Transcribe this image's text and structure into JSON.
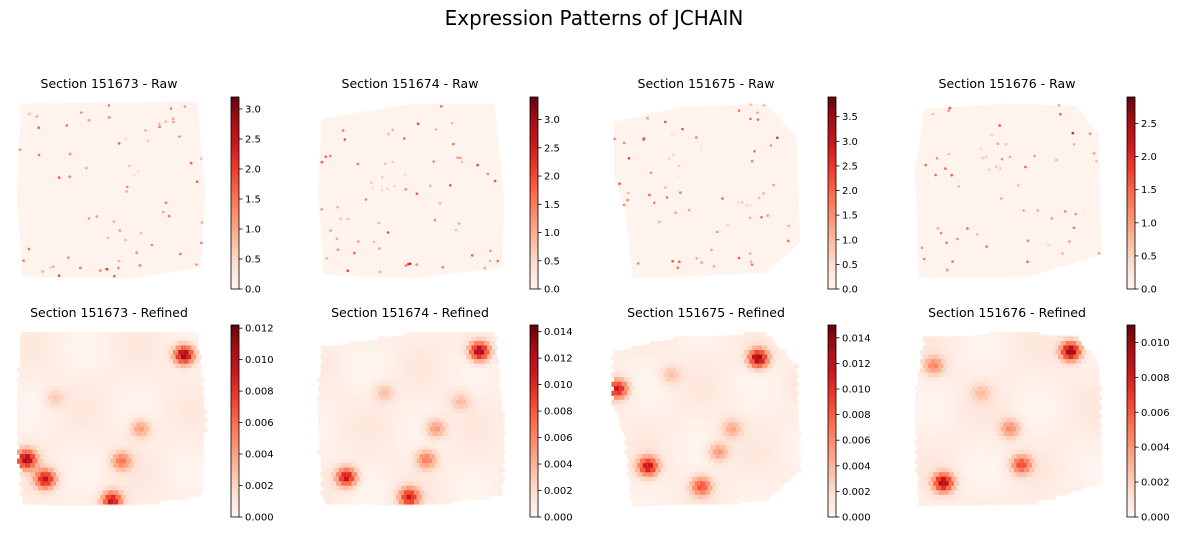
{
  "figure": {
    "title": "Expression Patterns of JCHAIN"
  },
  "colormap": {
    "name": "Reds",
    "stops": [
      "#fff5f0",
      "#fee0d2",
      "#fcbba1",
      "#fc9272",
      "#fb6a4a",
      "#ef3b2c",
      "#cb181d",
      "#a50f15",
      "#67000d"
    ]
  },
  "chart_data": [
    {
      "type": "heatmap",
      "title": "Section 151673 - Raw",
      "colorbar": {
        "vmin": 0.0,
        "vmax": 3.2,
        "ticks": [
          "0.0",
          "0.5",
          "1.0",
          "1.5",
          "2.0",
          "2.5",
          "3.0"
        ],
        "tick_values": [
          0,
          0.5,
          1.0,
          1.5,
          2.0,
          2.5,
          3.0
        ]
      },
      "hotspots": [
        {
          "x": 0.93,
          "y": 0.12,
          "value": 2.6
        },
        {
          "x": 0.62,
          "y": 0.62,
          "value": 1.6
        },
        {
          "x": 0.05,
          "y": 0.73,
          "value": 3.0
        },
        {
          "x": 0.18,
          "y": 0.85,
          "value": 1.8
        },
        {
          "x": 0.5,
          "y": 0.95,
          "value": 2.2
        },
        {
          "x": 0.55,
          "y": 0.72,
          "value": 1.3
        },
        {
          "x": 0.65,
          "y": 0.3,
          "value": 1.2
        }
      ]
    },
    {
      "type": "heatmap",
      "title": "Section 151674 - Raw",
      "colorbar": {
        "vmin": 0.0,
        "vmax": 3.4,
        "ticks": [
          "0.0",
          "0.5",
          "1.0",
          "1.5",
          "2.0",
          "2.5",
          "3.0"
        ],
        "tick_values": [
          0,
          0.5,
          1.0,
          1.5,
          2.0,
          2.5,
          3.0
        ]
      },
      "hotspots": [
        {
          "x": 0.9,
          "y": 0.13,
          "value": 2.8
        },
        {
          "x": 0.68,
          "y": 0.28,
          "value": 2.4
        },
        {
          "x": 0.65,
          "y": 0.65,
          "value": 1.8
        },
        {
          "x": 0.18,
          "y": 0.8,
          "value": 2.0
        },
        {
          "x": 0.5,
          "y": 0.93,
          "value": 3.0
        },
        {
          "x": 0.06,
          "y": 0.7,
          "value": 2.2
        },
        {
          "x": 0.35,
          "y": 0.4,
          "value": 1.2
        }
      ]
    },
    {
      "type": "heatmap",
      "title": "Section 151675 - Raw",
      "colorbar": {
        "vmin": 0.0,
        "vmax": 3.9,
        "ticks": [
          "0.0",
          "0.5",
          "1.0",
          "1.5",
          "2.0",
          "2.5",
          "3.0",
          "3.5"
        ],
        "tick_values": [
          0,
          0.5,
          1.0,
          1.5,
          2.0,
          2.5,
          3.0,
          3.5
        ]
      },
      "hotspots": [
        {
          "x": 0.8,
          "y": 0.18,
          "value": 3.6
        },
        {
          "x": 0.03,
          "y": 0.33,
          "value": 3.2
        },
        {
          "x": 0.65,
          "y": 0.65,
          "value": 1.4
        },
        {
          "x": 0.52,
          "y": 0.85,
          "value": 2.0
        },
        {
          "x": 0.35,
          "y": 0.3,
          "value": 1.0
        }
      ]
    },
    {
      "type": "heatmap",
      "title": "Section 151676 - Raw",
      "colorbar": {
        "vmin": 0.0,
        "vmax": 2.9,
        "ticks": [
          "0.0",
          "0.5",
          "1.0",
          "1.5",
          "2.0",
          "2.5"
        ],
        "tick_values": [
          0,
          0.5,
          1.0,
          1.5,
          2.0,
          2.5
        ]
      },
      "hotspots": [
        {
          "x": 0.82,
          "y": 0.14,
          "value": 2.5
        },
        {
          "x": 0.15,
          "y": 0.82,
          "value": 2.2
        },
        {
          "x": 0.55,
          "y": 0.55,
          "value": 1.6
        },
        {
          "x": 0.6,
          "y": 0.75,
          "value": 1.4
        },
        {
          "x": 0.45,
          "y": 0.3,
          "value": 1.2
        }
      ]
    },
    {
      "type": "heatmap",
      "title": "Section 151673 - Refined",
      "colorbar": {
        "vmin": 0.0,
        "vmax": 0.0122,
        "ticks": [
          "0.000",
          "0.002",
          "0.004",
          "0.006",
          "0.008",
          "0.010",
          "0.012"
        ],
        "tick_values": [
          0,
          0.002,
          0.004,
          0.006,
          0.008,
          0.01,
          0.012
        ]
      },
      "hotspots": [
        {
          "x": 0.88,
          "y": 0.14,
          "value": 0.011
        },
        {
          "x": 0.05,
          "y": 0.72,
          "value": 0.01
        },
        {
          "x": 0.15,
          "y": 0.83,
          "value": 0.009
        },
        {
          "x": 0.5,
          "y": 0.95,
          "value": 0.009
        },
        {
          "x": 0.55,
          "y": 0.73,
          "value": 0.005
        },
        {
          "x": 0.65,
          "y": 0.55,
          "value": 0.004
        },
        {
          "x": 0.2,
          "y": 0.38,
          "value": 0.002
        }
      ]
    },
    {
      "type": "heatmap",
      "title": "Section 151674 - Refined",
      "colorbar": {
        "vmin": 0.0,
        "vmax": 0.0145,
        "ticks": [
          "0.000",
          "0.002",
          "0.004",
          "0.006",
          "0.008",
          "0.010",
          "0.012",
          "0.014"
        ],
        "tick_values": [
          0,
          0.002,
          0.004,
          0.006,
          0.008,
          0.01,
          0.012,
          0.014
        ]
      },
      "hotspots": [
        {
          "x": 0.85,
          "y": 0.12,
          "value": 0.013
        },
        {
          "x": 0.15,
          "y": 0.82,
          "value": 0.011
        },
        {
          "x": 0.48,
          "y": 0.93,
          "value": 0.01
        },
        {
          "x": 0.57,
          "y": 0.72,
          "value": 0.006
        },
        {
          "x": 0.62,
          "y": 0.55,
          "value": 0.005
        },
        {
          "x": 0.35,
          "y": 0.35,
          "value": 0.003
        },
        {
          "x": 0.75,
          "y": 0.4,
          "value": 0.003
        }
      ]
    },
    {
      "type": "heatmap",
      "title": "Section 151675 - Refined",
      "colorbar": {
        "vmin": 0.0,
        "vmax": 0.015,
        "ticks": [
          "0.000",
          "0.002",
          "0.004",
          "0.006",
          "0.008",
          "0.010",
          "0.012",
          "0.014"
        ],
        "tick_values": [
          0,
          0.002,
          0.004,
          0.006,
          0.008,
          0.01,
          0.012,
          0.014
        ]
      },
      "hotspots": [
        {
          "x": 0.76,
          "y": 0.16,
          "value": 0.013
        },
        {
          "x": 0.02,
          "y": 0.33,
          "value": 0.011
        },
        {
          "x": 0.18,
          "y": 0.76,
          "value": 0.011
        },
        {
          "x": 0.46,
          "y": 0.87,
          "value": 0.008
        },
        {
          "x": 0.55,
          "y": 0.68,
          "value": 0.005
        },
        {
          "x": 0.62,
          "y": 0.55,
          "value": 0.004
        },
        {
          "x": 0.3,
          "y": 0.25,
          "value": 0.003
        }
      ]
    },
    {
      "type": "heatmap",
      "title": "Section 151676 - Refined",
      "colorbar": {
        "vmin": 0.0,
        "vmax": 0.011,
        "ticks": [
          "0.000",
          "0.002",
          "0.004",
          "0.006",
          "0.008",
          "0.010"
        ],
        "tick_values": [
          0,
          0.002,
          0.004,
          0.006,
          0.008,
          0.01
        ]
      },
      "hotspots": [
        {
          "x": 0.82,
          "y": 0.12,
          "value": 0.01
        },
        {
          "x": 0.15,
          "y": 0.85,
          "value": 0.009
        },
        {
          "x": 0.56,
          "y": 0.75,
          "value": 0.006
        },
        {
          "x": 0.5,
          "y": 0.55,
          "value": 0.004
        },
        {
          "x": 0.1,
          "y": 0.2,
          "value": 0.004
        },
        {
          "x": 0.35,
          "y": 0.35,
          "value": 0.002
        }
      ]
    }
  ]
}
